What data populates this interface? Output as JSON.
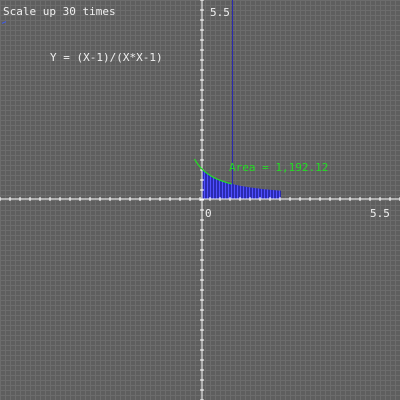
{
  "header": {
    "scale_text": "Scale up 30 times"
  },
  "chart_data": {
    "type": "area",
    "title": "",
    "equation_label": "Y = (X-1)/(X*X-1)",
    "function": "y = (x-1)/(x*x-1)",
    "xlim": [
      -5.5,
      5.5
    ],
    "ylim": [
      -5.5,
      5.5
    ],
    "x_tick_labels": [
      "0",
      "5.5"
    ],
    "y_tick_labels": [
      "5.5"
    ],
    "grid": true,
    "curve_range": [
      -0.25,
      4.9
    ],
    "area_range": [
      0,
      2.6
    ],
    "area_label": "Area = 1,192.12",
    "colors": {
      "background": "#5e5e5e",
      "grid": "#6c6c6c",
      "axes": "#ffffff",
      "curve": "#22dd22",
      "area_fill": "#2a2ab0",
      "area_stroke": "#5050ff"
    }
  }
}
